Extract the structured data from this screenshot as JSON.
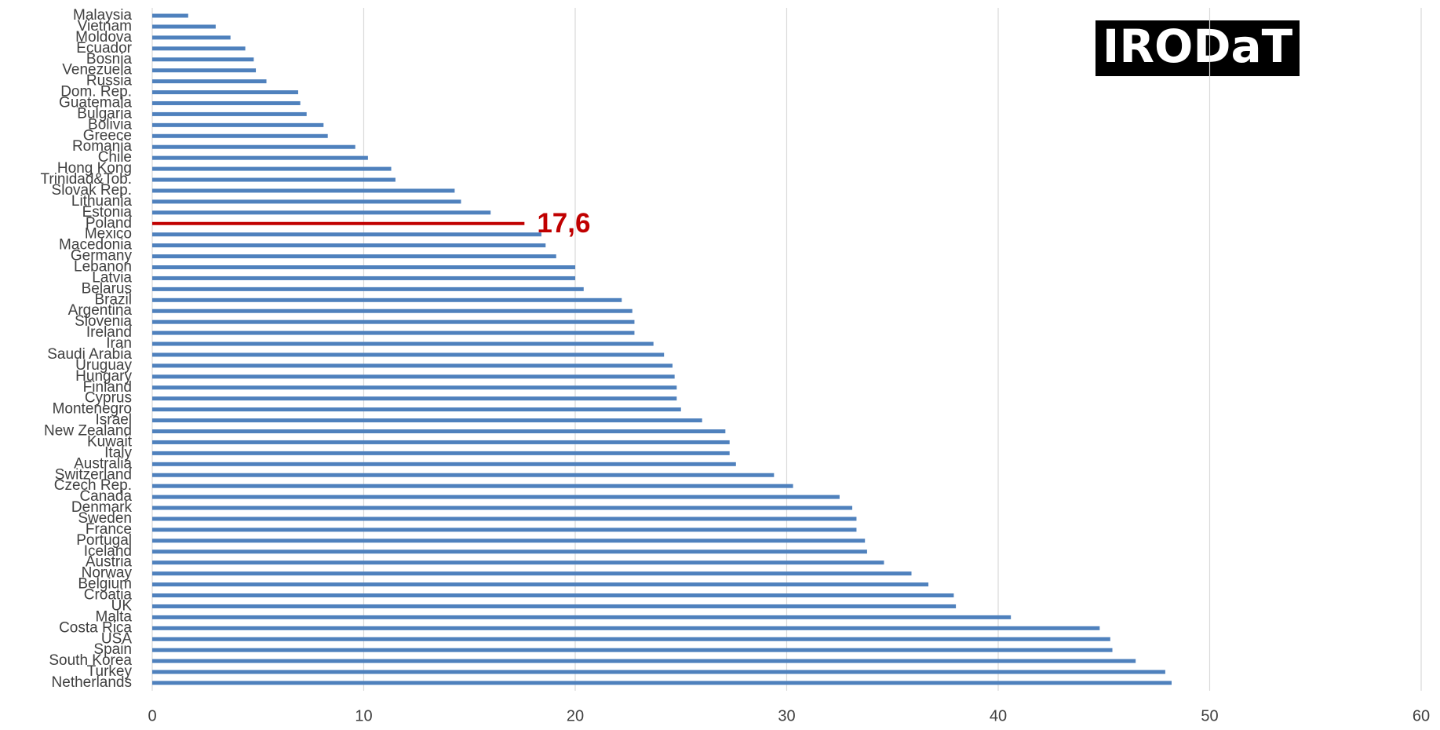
{
  "logo": "IRODaT",
  "chart_data": {
    "type": "barh",
    "categories": [
      "Malaysia",
      "Vietnam",
      "Moldova",
      "Ecuador",
      "Bosnia",
      "Venezuela",
      "Russia",
      "Dom. Rep.",
      "Guatemala",
      "Bulgaria",
      "Bolivia",
      "Greece",
      "Romania",
      "Chile",
      "Hong Kong",
      "Trinidad&Tob.",
      "Slovak Rep.",
      "Lithuania",
      "Estonia",
      "Poland",
      "Mexico",
      "Macedonia",
      "Germany",
      "Lebanon",
      "Latvia",
      "Belarus",
      "Brazil",
      "Argentina",
      "Slovenia",
      "Ireland",
      "Iran",
      "Saudi Arabia",
      "Uruguay",
      "Hungary",
      "Finland",
      "Cyprus",
      "Montenegro",
      "Israel",
      "New Zealand",
      "Kuwait",
      "Italy",
      "Australia",
      "Switzerland",
      "Czech Rep.",
      "Canada",
      "Denmark",
      "Sweden",
      "France",
      "Portugal",
      "Iceland",
      "Austria",
      "Norway",
      "Belgium",
      "Croatia",
      "UK",
      "Malta",
      "Costa Rica",
      "USA",
      "Spain",
      "South Korea",
      "Turkey",
      "Netherlands"
    ],
    "values": [
      1.7,
      3.0,
      3.7,
      4.4,
      4.8,
      4.9,
      5.4,
      6.9,
      7.0,
      7.3,
      8.1,
      8.3,
      9.6,
      10.2,
      11.3,
      11.5,
      14.3,
      14.6,
      16.0,
      17.6,
      18.4,
      18.6,
      19.1,
      20.0,
      20.0,
      20.4,
      22.2,
      22.7,
      22.8,
      22.8,
      23.7,
      24.2,
      24.6,
      24.7,
      24.8,
      24.8,
      25.0,
      26.0,
      27.1,
      27.3,
      27.3,
      27.6,
      29.4,
      30.3,
      32.5,
      33.1,
      33.3,
      33.3,
      33.7,
      33.8,
      34.6,
      35.9,
      36.7,
      37.9,
      38.0,
      40.6,
      44.8,
      45.3,
      45.4,
      46.5,
      47.9,
      48.2
    ],
    "value_labels": [
      null,
      null,
      null,
      null,
      null,
      null,
      null,
      null,
      null,
      null,
      null,
      null,
      null,
      null,
      null,
      null,
      null,
      null,
      null,
      "17,6",
      null,
      null,
      null,
      null,
      null,
      null,
      null,
      null,
      null,
      null,
      null,
      null,
      null,
      null,
      null,
      null,
      null,
      null,
      null,
      null,
      null,
      null,
      null,
      null,
      null,
      null,
      null,
      null,
      null,
      null,
      null,
      null,
      null,
      null,
      null,
      null,
      null,
      null,
      null,
      null,
      null,
      null
    ],
    "color": "#4f81bd",
    "highlight_color": "#c00000",
    "xlim": [
      0,
      60
    ],
    "xticks": [
      0,
      10,
      20,
      30,
      40,
      50,
      60
    ],
    "grid": true
  }
}
